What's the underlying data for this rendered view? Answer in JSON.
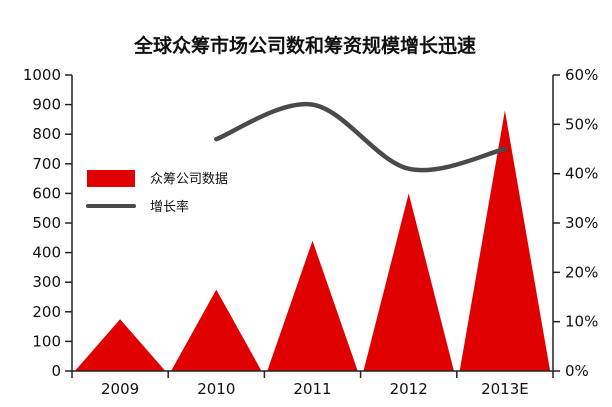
{
  "chart_data": {
    "type": "bar",
    "title": "全球众筹市场公司数和筹资规模增长迅速",
    "categories": [
      "2009",
      "2010",
      "2011",
      "2012",
      "2013E"
    ],
    "series": [
      {
        "name": "众筹公司数据",
        "type": "bar",
        "axis": "left",
        "values": [
          175,
          275,
          440,
          600,
          880
        ],
        "color": "#e00000"
      },
      {
        "name": "增长率",
        "type": "line",
        "axis": "right",
        "x": [
          "2010",
          "2011",
          "2012",
          "2013E"
        ],
        "values": [
          47,
          54,
          41,
          45
        ],
        "unit": "%",
        "color": "#4a4a4a"
      }
    ],
    "y_left": {
      "min": 0,
      "max": 1000,
      "ticks": [
        0,
        100,
        200,
        300,
        400,
        500,
        600,
        700,
        800,
        900,
        1000
      ]
    },
    "y_right": {
      "min": 0,
      "max": 60,
      "ticks": [
        0,
        10,
        20,
        30,
        40,
        50,
        60
      ],
      "unit": "%"
    },
    "bar_shape": "triangle",
    "legend": {
      "position": "center-left",
      "items": [
        "众筹公司数据",
        "增长率"
      ]
    },
    "grid": false
  }
}
